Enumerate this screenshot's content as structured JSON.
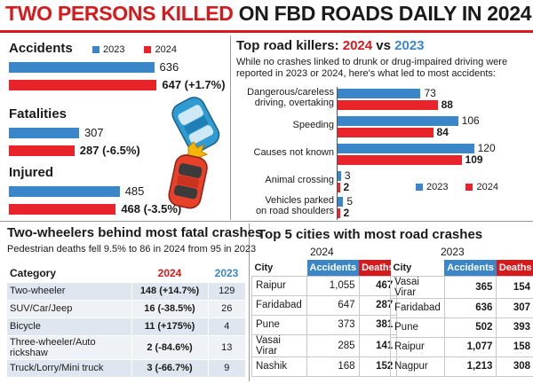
{
  "headline": {
    "red": "TWO PERSONS KILLED",
    "dark": " ON FBD ROADS DAILY IN 2024"
  },
  "left_panel": {
    "legend": {
      "y2023": "2023",
      "y2024": "2024"
    },
    "colors": {
      "y2023": "#3a86c8",
      "y2024": "#e8232a"
    }
  },
  "chart_data": [
    {
      "type": "bar",
      "orientation": "horizontal",
      "categories": [
        "Accidents",
        "Fatalities",
        "Injured"
      ],
      "series": [
        {
          "name": "2023",
          "values": [
            636,
            307,
            485
          ]
        },
        {
          "name": "2024",
          "values": [
            647,
            287,
            468
          ]
        }
      ],
      "labels_2023": [
        "636",
        "307",
        "485"
      ],
      "labels_2024": [
        "647 (+1.7%)",
        "287 (-6.5%)",
        "468 (-3.5%)"
      ],
      "legend": "top"
    },
    {
      "type": "bar",
      "orientation": "horizontal",
      "title_prefix": "Top road killers: ",
      "title_2024": "2024",
      "title_vs": " vs ",
      "title_2023": "2023",
      "subtitle_lines": [
        "While no crashes linked to drunk or drug-impaired driving were",
        "reported in 2023 or 2024, here's what led to most accidents:"
      ],
      "categories": [
        [
          "Dangerous/careless",
          "driving, overtaking"
        ],
        [
          "Speeding"
        ],
        [
          "Causes not known"
        ],
        [
          "Animal crossing"
        ],
        [
          "Vehicles parked",
          "on road shoulders"
        ]
      ],
      "series": [
        {
          "name": "2023",
          "values": [
            73,
            106,
            120,
            3,
            5
          ]
        },
        {
          "name": "2024",
          "values": [
            88,
            84,
            109,
            2,
            2
          ]
        }
      ],
      "legend": "bottom-right"
    }
  ],
  "two_wheelers": {
    "title": "Two-wheelers behind most fatal crashes",
    "subtitle": "Pedestrian deaths fell 9.5% to 86 in 2024 from 95 in 2023",
    "headers": {
      "category": "Category",
      "y2024": "2024",
      "y2023": "2023"
    },
    "rows": [
      {
        "category": "Two-wheeler",
        "y2024": "148 (+14.7%)",
        "y2023": "129"
      },
      {
        "category": "SUV/Car/Jeep",
        "y2024": "16 (-38.5%)",
        "y2023": "26"
      },
      {
        "category": "Bicycle",
        "y2024": "11 (+175%)",
        "y2023": "4"
      },
      {
        "category": "Three-wheeler/Auto rickshaw",
        "y2024": "2 (-84.6%)",
        "y2023": "13"
      },
      {
        "category": "Truck/Lorry/Mini truck",
        "y2024": "3 (-66.7%)",
        "y2023": "9"
      }
    ]
  },
  "cities": {
    "title": "Top 5 cities with most road crashes",
    "headers": {
      "city": "City",
      "accidents": "Accidents",
      "deaths": "Deaths"
    },
    "tables": [
      {
        "year": "2024",
        "rows": [
          {
            "city": "Raipur",
            "accidents": "1,055",
            "deaths": "467"
          },
          {
            "city": "Faridabad",
            "accidents": "647",
            "deaths": "287"
          },
          {
            "city": "Pune",
            "accidents": "373",
            "deaths": "381"
          },
          {
            "city": "Vasai Virar",
            "accidents": "285",
            "deaths": "141"
          },
          {
            "city": "Nashik",
            "accidents": "168",
            "deaths": "152"
          }
        ]
      },
      {
        "year": "2023",
        "rows": [
          {
            "city": "Vasai Virar",
            "accidents": "365",
            "deaths": "154"
          },
          {
            "city": "Faridabad",
            "accidents": "636",
            "deaths": "307"
          },
          {
            "city": "Pune",
            "accidents": "502",
            "deaths": "393"
          },
          {
            "city": "Raipur",
            "accidents": "1,077",
            "deaths": "158"
          },
          {
            "city": "Nagpur",
            "accidents": "1,213",
            "deaths": "308"
          }
        ]
      }
    ]
  }
}
